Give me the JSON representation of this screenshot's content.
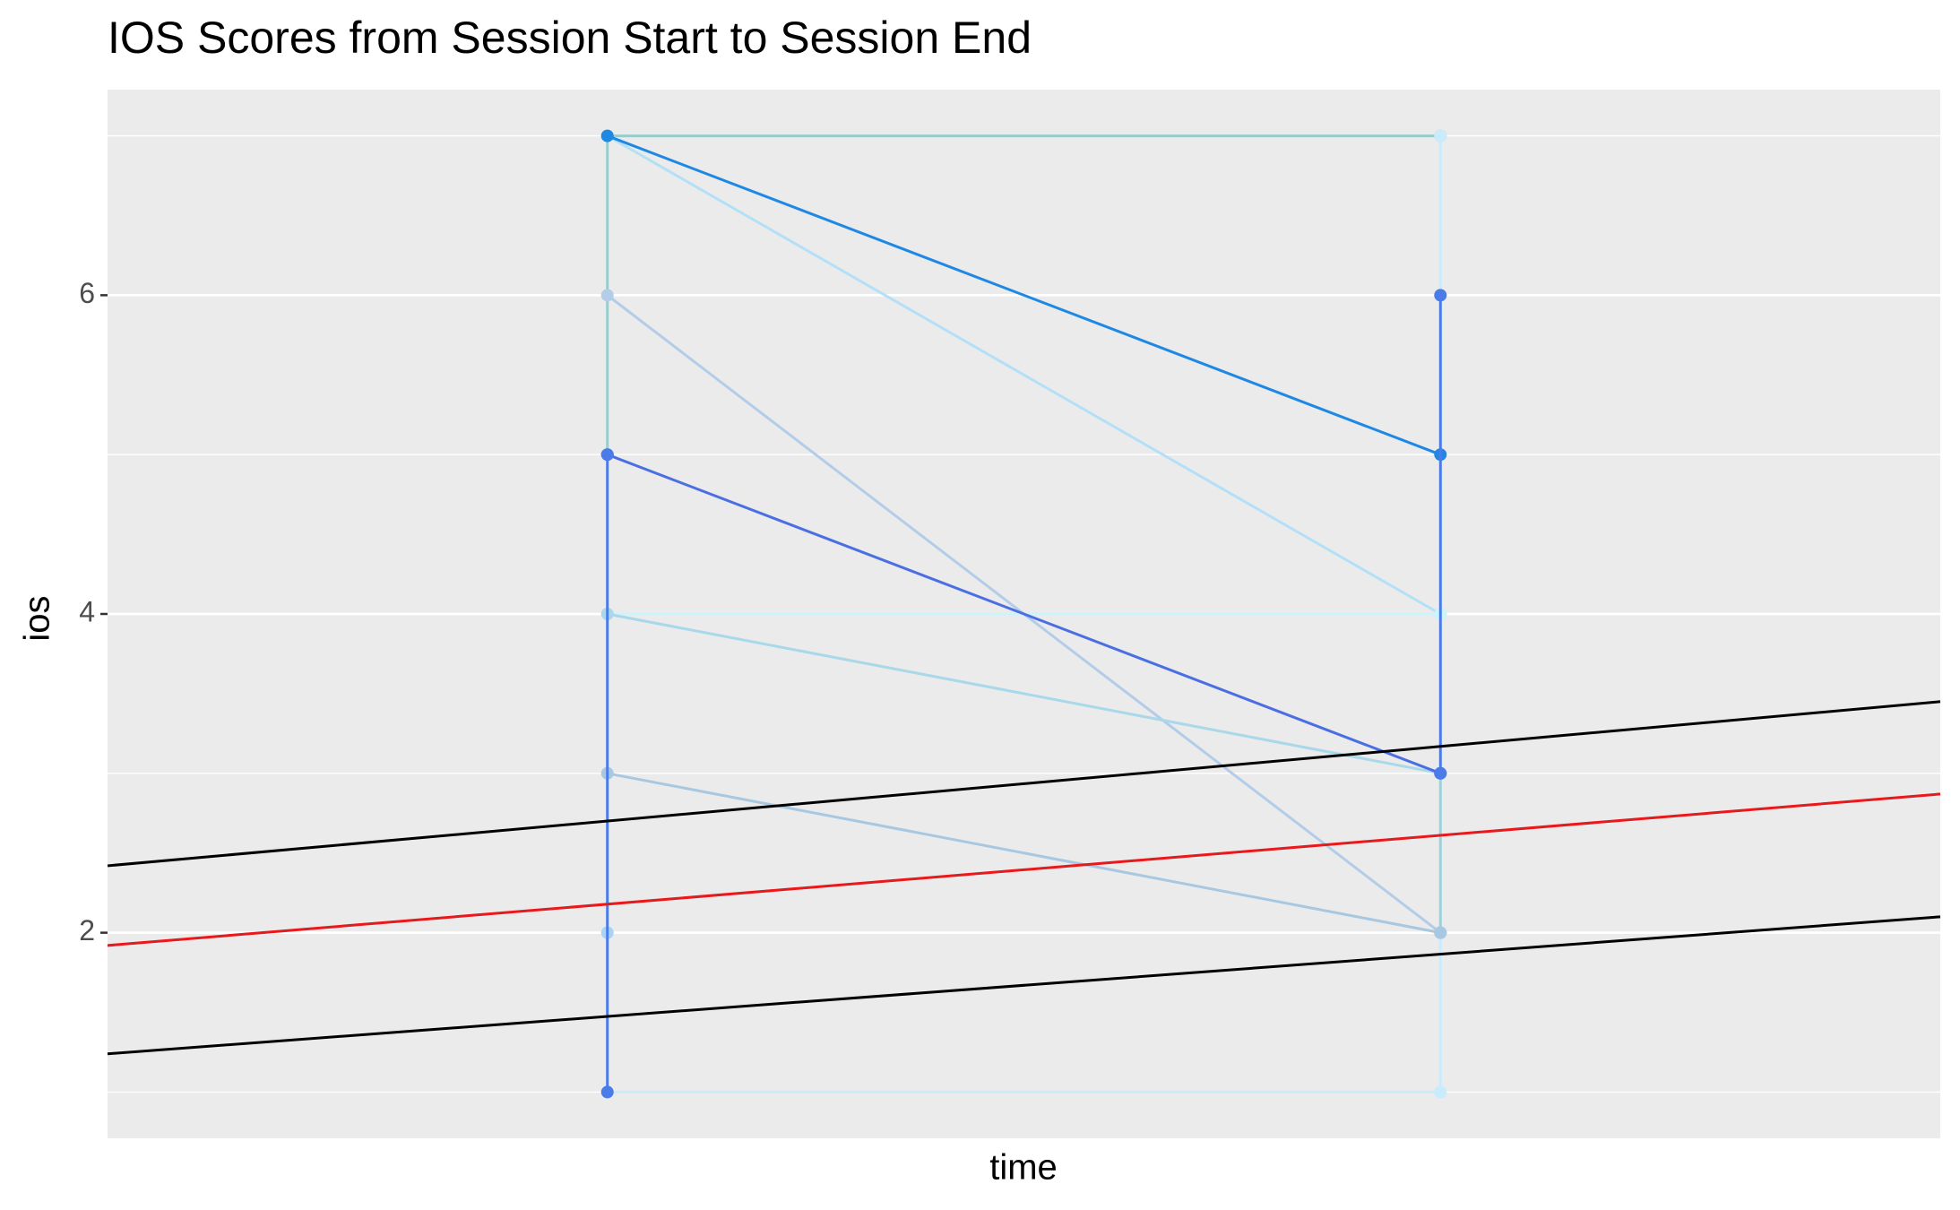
{
  "chart_data": {
    "type": "line",
    "title": "IOS Scores from Session Start to Session End",
    "x_label": "time",
    "y_label": "ios",
    "xlim": [
      0.4,
      2.6
    ],
    "ylim": [
      0.71,
      7.29
    ],
    "yticks": [
      2,
      4,
      6
    ],
    "grid": true,
    "series": [
      {
        "color": "#99cccc",
        "x": [
          1,
          2
        ],
        "values": [
          7,
          7
        ]
      },
      {
        "color": "#c9ebfb",
        "x": [
          1,
          2
        ],
        "values": [
          1,
          1
        ]
      },
      {
        "color": "#c9ebfb",
        "x": [
          2,
          2
        ],
        "values": [
          1,
          2
        ]
      },
      {
        "color": "#c9ebfb",
        "x": [
          2,
          2
        ],
        "values": [
          4,
          7
        ]
      },
      {
        "color": "#99cccc",
        "x": [
          1,
          1
        ],
        "values": [
          5,
          7
        ]
      },
      {
        "color": "#a0d0d8",
        "x": [
          2,
          2
        ],
        "values": [
          2,
          3
        ]
      },
      {
        "color": "#b3e0f7",
        "x": [
          1,
          2
        ],
        "values": [
          7,
          4
        ]
      },
      {
        "color": "#b3cde8",
        "x": [
          1,
          2
        ],
        "values": [
          6,
          2
        ]
      },
      {
        "color": "#ccf5fb",
        "x": [
          1,
          2
        ],
        "values": [
          4,
          4
        ]
      },
      {
        "color": "#a8d8ea",
        "x": [
          1,
          2
        ],
        "values": [
          4,
          3
        ]
      },
      {
        "color": "#a7c8e0",
        "x": [
          1,
          2
        ],
        "values": [
          3,
          2
        ]
      },
      {
        "color": "#a7d3f5",
        "x": [
          1
        ],
        "values": [
          2
        ]
      },
      {
        "color": "#1e88e5",
        "x": [
          1,
          2
        ],
        "values": [
          7,
          5
        ]
      },
      {
        "color": "#4a6fe3",
        "x": [
          1,
          2
        ],
        "values": [
          5,
          3
        ]
      },
      {
        "color": "#4a7be8",
        "x": [
          1,
          1
        ],
        "values": [
          1,
          5
        ]
      },
      {
        "color": "#4a7be8",
        "x": [
          2,
          2
        ],
        "values": [
          3,
          6
        ]
      },
      {
        "color": "#000000",
        "x": [
          0.4,
          2.6
        ],
        "values": [
          2.42,
          3.45
        ],
        "points": false
      },
      {
        "color": "#e8181b",
        "x": [
          0.4,
          2.6
        ],
        "values": [
          1.92,
          2.87
        ],
        "points": false
      },
      {
        "color": "#000000",
        "x": [
          0.4,
          2.6
        ],
        "values": [
          1.24,
          2.1
        ],
        "points": false
      }
    ]
  }
}
